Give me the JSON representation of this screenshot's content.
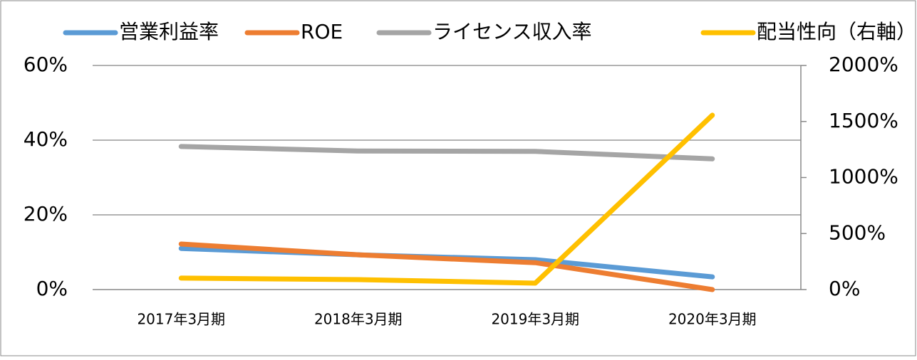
{
  "chart_data": {
    "type": "line",
    "categories": [
      "2017年3月期",
      "2018年3月期",
      "2019年3月期",
      "2020年3月期"
    ],
    "series": [
      {
        "name": "営業利益率",
        "color": "#5b9bd5",
        "values": [
          11,
          9.3,
          8,
          3.4
        ]
      },
      {
        "name": "ROE",
        "color": "#ed7d31",
        "values": [
          12.2,
          9.3,
          7.2,
          0
        ]
      },
      {
        "name": "ライセンス収入率",
        "color": "#a5a5a5",
        "values": [
          38.3,
          37.1,
          37,
          35
        ]
      },
      {
        "name": "配当性向（右軸）",
        "color": "#ffc000",
        "values": [
          102,
          89,
          57,
          1556
        ],
        "axis": "y2"
      }
    ],
    "ylim": [
      0,
      60
    ],
    "yticks": [
      {
        "value": 0,
        "label": "0%"
      },
      {
        "value": 20,
        "label": "20%"
      },
      {
        "value": 40,
        "label": "40%"
      },
      {
        "value": 60,
        "label": "60%"
      }
    ],
    "y2lim": [
      0,
      2000
    ],
    "y2ticks": [
      {
        "value": 0,
        "label": "0%"
      },
      {
        "value": 500,
        "label": "500%"
      },
      {
        "value": 1000,
        "label": "1000%"
      },
      {
        "value": 1500,
        "label": "1500%"
      },
      {
        "value": 2000,
        "label": "2000%"
      }
    ],
    "grid": true,
    "legend": "top"
  }
}
